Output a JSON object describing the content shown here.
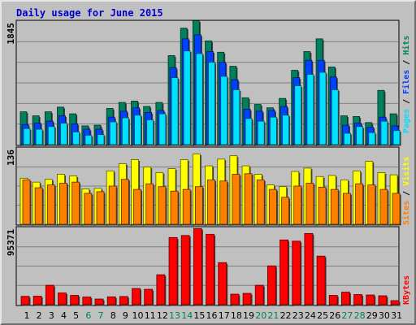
{
  "title": "Daily usage for June 2015",
  "colors": {
    "title": "#0000cc",
    "frame_bg": "#c0c0c0",
    "plot_bg": "#c0c0c0",
    "grid": "#808080",
    "hits": "#00805c",
    "files": "#0040ff",
    "pages": "#00e0ff",
    "visits": "#ffff00",
    "sites": "#ff8000",
    "kbytes": "#ff0000",
    "weekend_day": "#00805c",
    "weekday_day": "#000000"
  },
  "legend": {
    "hits_panel": [
      "Pages",
      "Files",
      "Hits"
    ],
    "visits_panel": [
      "Sites",
      "Visits"
    ],
    "kbytes_panel": [
      "KBytes"
    ],
    "separator": " / "
  },
  "chart_data": [
    {
      "type": "bar",
      "panel": "pages-files-hits",
      "title": "Daily usage for June 2015",
      "categories": [
        "1",
        "2",
        "3",
        "4",
        "5",
        "6",
        "7",
        "8",
        "9",
        "10",
        "11",
        "12",
        "13",
        "14",
        "15",
        "16",
        "17",
        "18",
        "19",
        "20",
        "21",
        "22",
        "23",
        "24",
        "25",
        "26",
        "27",
        "28",
        "29",
        "30",
        "31"
      ],
      "y_max_label": "1845",
      "ylim": [
        0,
        1845
      ],
      "series": [
        {
          "name": "Hits",
          "values": [
            490,
            430,
            490,
            560,
            460,
            280,
            290,
            540,
            630,
            650,
            570,
            630,
            1330,
            1740,
            1850,
            1550,
            1380,
            1170,
            700,
            600,
            550,
            690,
            1110,
            1390,
            1580,
            1160,
            430,
            420,
            330,
            810,
            460
          ]
        },
        {
          "name": "Files",
          "values": [
            300,
            320,
            350,
            430,
            310,
            230,
            230,
            410,
            500,
            550,
            480,
            510,
            1150,
            1580,
            1640,
            1390,
            1230,
            970,
            530,
            500,
            510,
            570,
            1000,
            1260,
            1260,
            1010,
            290,
            320,
            260,
            410,
            280
          ]
        },
        {
          "name": "Pages",
          "values": [
            240,
            230,
            270,
            320,
            190,
            140,
            150,
            340,
            400,
            440,
            370,
            460,
            1000,
            1400,
            1360,
            1230,
            1020,
            820,
            390,
            350,
            410,
            440,
            880,
            1050,
            1080,
            820,
            170,
            270,
            180,
            350,
            210
          ]
        }
      ],
      "grid": true,
      "weekend_days": [
        6,
        7,
        13,
        14,
        20,
        21,
        27,
        28
      ]
    },
    {
      "type": "bar",
      "panel": "sites-visits",
      "categories": [
        "1",
        "2",
        "3",
        "4",
        "5",
        "6",
        "7",
        "8",
        "9",
        "10",
        "11",
        "12",
        "13",
        "14",
        "15",
        "16",
        "17",
        "18",
        "19",
        "20",
        "21",
        "22",
        "23",
        "24",
        "25",
        "26",
        "27",
        "28",
        "29",
        "30",
        "31"
      ],
      "y_max_label": "136",
      "ylim": [
        0,
        136
      ],
      "series": [
        {
          "name": "Visits",
          "values": [
            82,
            75,
            80,
            89,
            86,
            63,
            64,
            95,
            108,
            115,
            102,
            92,
            99,
            115,
            125,
            104,
            116,
            122,
            104,
            89,
            70,
            67,
            94,
            100,
            85,
            87,
            79,
            95,
            112,
            92,
            88
          ]
        },
        {
          "name": "Sites",
          "values": [
            79,
            65,
            70,
            73,
            75,
            55,
            58,
            68,
            80,
            62,
            72,
            67,
            59,
            62,
            67,
            79,
            77,
            89,
            90,
            79,
            62,
            48,
            68,
            73,
            66,
            62,
            55,
            72,
            70,
            62,
            55
          ]
        }
      ],
      "grid": true
    },
    {
      "type": "bar",
      "panel": "kbytes",
      "categories": [
        "1",
        "2",
        "3",
        "4",
        "5",
        "6",
        "7",
        "8",
        "9",
        "10",
        "11",
        "12",
        "13",
        "14",
        "15",
        "16",
        "17",
        "18",
        "19",
        "20",
        "21",
        "22",
        "23",
        "24",
        "25",
        "26",
        "27",
        "28",
        "29",
        "30",
        "31"
      ],
      "y_max_label": "95371",
      "ylim": [
        0,
        95371
      ],
      "series": [
        {
          "name": "KBytes",
          "values": [
            10300,
            10500,
            24000,
            14500,
            11500,
            9500,
            7000,
            9700,
            10100,
            20000,
            19000,
            37000,
            83000,
            85500,
            94000,
            87000,
            52000,
            13000,
            14000,
            24000,
            48000,
            80000,
            78500,
            88000,
            60000,
            11500,
            15500,
            12500,
            12000,
            11000,
            5000
          ]
        }
      ],
      "grid": true
    }
  ]
}
